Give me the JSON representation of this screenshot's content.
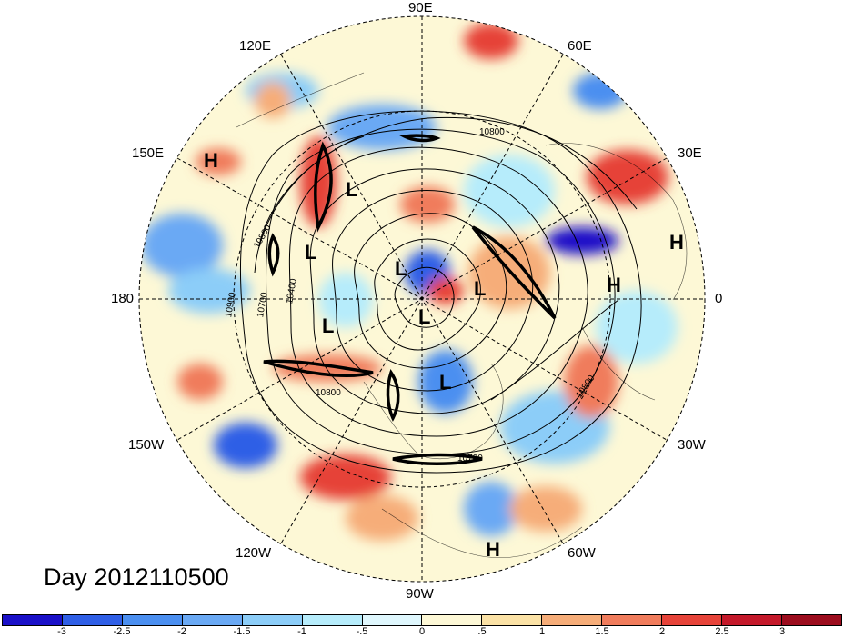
{
  "title": "Day 2012110500",
  "longitude_labels": {
    "lon_90e": "90E",
    "lon_60e": "60E",
    "lon_30e": "30E",
    "lon_0": "0",
    "lon_30w": "30W",
    "lon_60w": "60W",
    "lon_90w": "90W",
    "lon_120w": "120W",
    "lon_150w": "150W",
    "lon_180": "180",
    "lon_150e": "150E",
    "lon_120e": "120E"
  },
  "contour_labels": [
    "10800",
    "10800",
    "10800",
    "10900",
    "10700",
    "10400",
    "10800",
    "10700"
  ],
  "pressure_systems": {
    "h1": "H",
    "h2": "H",
    "h3": "H",
    "h4": "H",
    "l1": "L",
    "l2": "L",
    "l3": "L",
    "l4": "L",
    "l5": "L",
    "l6": "L",
    "l7": "L"
  },
  "colorbar": {
    "ticks": [
      "-3",
      "-2.5",
      "-2",
      "-1.5",
      "-1",
      "-.5",
      "0",
      ".5",
      "1",
      "1.5",
      "2",
      "2.5",
      "3"
    ],
    "colors": [
      "#1a10c8",
      "#2f5fe6",
      "#4b8ff0",
      "#6aa9f4",
      "#8ccdf8",
      "#b6ecfb",
      "#dff7fd",
      "#fdf8d6",
      "#fbe2a6",
      "#f6ad79",
      "#f07c5c",
      "#e64339",
      "#c4192a",
      "#9c0d1e"
    ]
  }
}
